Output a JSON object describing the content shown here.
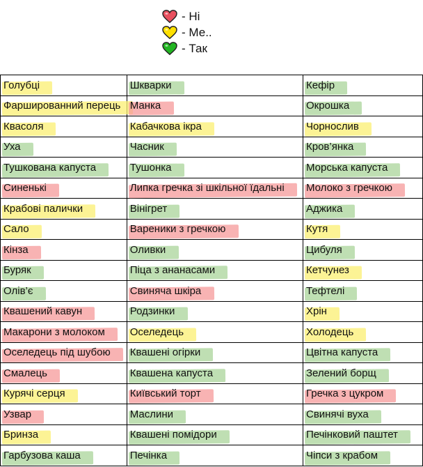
{
  "colors": {
    "no": "#f59a9a",
    "meh": "#fbef72",
    "yes": "#a9d49a"
  },
  "legend": [
    {
      "label": "- Ні",
      "color": "#e8505f",
      "status": "no"
    },
    {
      "label": "- Ме..",
      "color": "#ffe000",
      "status": "meh"
    },
    {
      "label": "- Так",
      "color": "#22b522",
      "status": "yes"
    }
  ],
  "rows": [
    [
      [
        "Голубці",
        "meh"
      ],
      [
        "Шкварки",
        "yes"
      ],
      [
        "Кефір",
        "yes"
      ]
    ],
    [
      [
        "Фаршированний перець",
        "meh"
      ],
      [
        "Манка",
        "no"
      ],
      [
        "Окрошка",
        "yes"
      ]
    ],
    [
      [
        "Квасоля",
        "meh"
      ],
      [
        "Кабачкова ікра",
        "meh"
      ],
      [
        "Чорнослив",
        "meh"
      ]
    ],
    [
      [
        "Уха",
        "yes"
      ],
      [
        "Часник",
        "yes"
      ],
      [
        "Кров’янка",
        "yes"
      ]
    ],
    [
      [
        "Тушкована капуста",
        "yes"
      ],
      [
        "Тушонка",
        "yes"
      ],
      [
        "Морська капуста",
        "yes"
      ]
    ],
    [
      [
        "Синенькі",
        "no"
      ],
      [
        "Липка гречка зі шкільної їдальні",
        "no"
      ],
      [
        "Молоко з гречкою",
        "no"
      ]
    ],
    [
      [
        "Крабові палички",
        "meh"
      ],
      [
        "Вінігрет",
        "yes"
      ],
      [
        "Аджика",
        "yes"
      ]
    ],
    [
      [
        "Сало",
        "meh"
      ],
      [
        "Вареники з гречкою",
        "no"
      ],
      [
        "Кутя",
        "meh"
      ]
    ],
    [
      [
        "Кінза",
        "no"
      ],
      [
        "Оливки",
        "yes"
      ],
      [
        "Цибуля",
        "yes"
      ]
    ],
    [
      [
        "Буряк",
        "yes"
      ],
      [
        "Піца з ананасами",
        "yes"
      ],
      [
        "Кетчунез",
        "meh"
      ]
    ],
    [
      [
        "Олів’є",
        "yes"
      ],
      [
        "Свиняча шкіра",
        "no"
      ],
      [
        "Тефтелі",
        "yes"
      ]
    ],
    [
      [
        "Квашений кавун",
        "no"
      ],
      [
        "Родзинки",
        "yes"
      ],
      [
        "Хрін",
        "meh"
      ]
    ],
    [
      [
        "Макарони з молоком",
        "no"
      ],
      [
        "Оселедець",
        "meh"
      ],
      [
        "Холодець",
        "meh"
      ]
    ],
    [
      [
        "Оселедець під шубою",
        "no"
      ],
      [
        "Квашені огірки",
        "yes"
      ],
      [
        "Цвітна капуста",
        "yes"
      ]
    ],
    [
      [
        "Смалець",
        "no"
      ],
      [
        "Квашена капуста",
        "yes"
      ],
      [
        "Зелений борщ",
        "yes"
      ]
    ],
    [
      [
        "Курячі серця",
        "meh"
      ],
      [
        "Київський торт",
        "no"
      ],
      [
        "Гречка з цукром",
        "no"
      ]
    ],
    [
      [
        "Узвар",
        "no"
      ],
      [
        "Маслини",
        "yes"
      ],
      [
        "Свинячі вуха",
        "yes"
      ]
    ],
    [
      [
        "Бринза",
        "meh"
      ],
      [
        "Квашені помідори",
        "yes"
      ],
      [
        "Печінковий паштет",
        "yes"
      ]
    ],
    [
      [
        "Гарбузова каша",
        "yes"
      ],
      [
        "Печінка",
        "yes"
      ],
      [
        "Чіпси з крабом",
        "yes"
      ]
    ]
  ]
}
